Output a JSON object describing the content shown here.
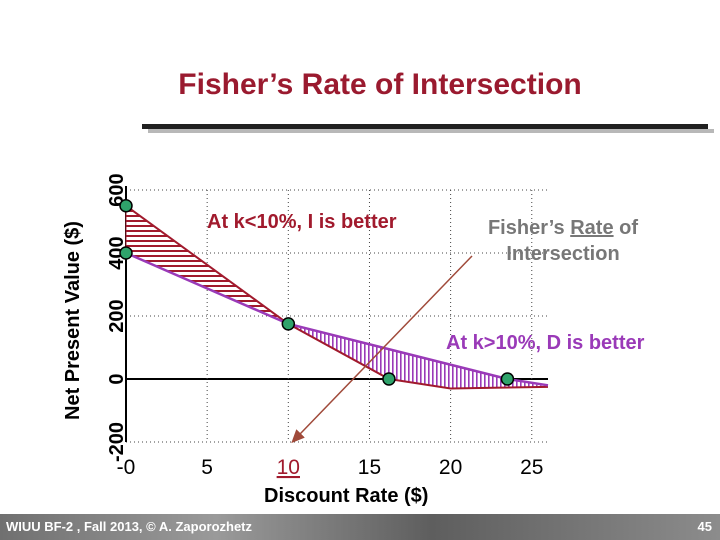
{
  "title": "Fisher’s Rate of Intersection",
  "annotations": {
    "left": "At k<10%, I is better",
    "right": "At k>10%, D is better",
    "fisher_prefix": "Fisher’s",
    "fisher_rate": "Rate",
    "fisher_of": "of",
    "fisher_line2": "Intersection"
  },
  "footer": {
    "left": "WIUU BF-2 , Fall 2013, © A. Zaporozhetz",
    "page": "45"
  },
  "colors": {
    "title": "#9a1a2f",
    "project_i": "#a11a2d",
    "project_d": "#9a3ab8",
    "marker": "#2fa36b",
    "arrow": "#a04a3a"
  },
  "chart_data": {
    "type": "line",
    "xlabel": "Discount Rate ($)",
    "ylabel": "Net Present Value ($)",
    "xlim": [
      0,
      26
    ],
    "ylim": [
      -200,
      600
    ],
    "xticks": [
      0,
      5,
      10,
      15,
      20,
      25
    ],
    "xtick_labels": [
      "-0",
      "5",
      "10",
      "15",
      "20",
      "25"
    ],
    "yticks": [
      -200,
      0,
      200,
      400,
      600
    ],
    "ytick_labels": [
      "-200",
      "0",
      "200",
      "400",
      "600"
    ],
    "grid": true,
    "series": [
      {
        "x": [
          0,
          10,
          16.2
        ],
        "y": [
          550,
          175,
          0
        ]
      },
      {
        "x": [
          0,
          10,
          23.5
        ],
        "y": [
          400,
          175,
          0
        ]
      }
    ],
    "markers": [
      {
        "x": 0,
        "y": 550
      },
      {
        "x": 0,
        "y": 400
      },
      {
        "x": 10,
        "y": 175
      },
      {
        "x": 16.2,
        "y": 0
      },
      {
        "x": 23.5,
        "y": 0
      }
    ],
    "crossover": {
      "x": 10,
      "y": 175
    }
  }
}
